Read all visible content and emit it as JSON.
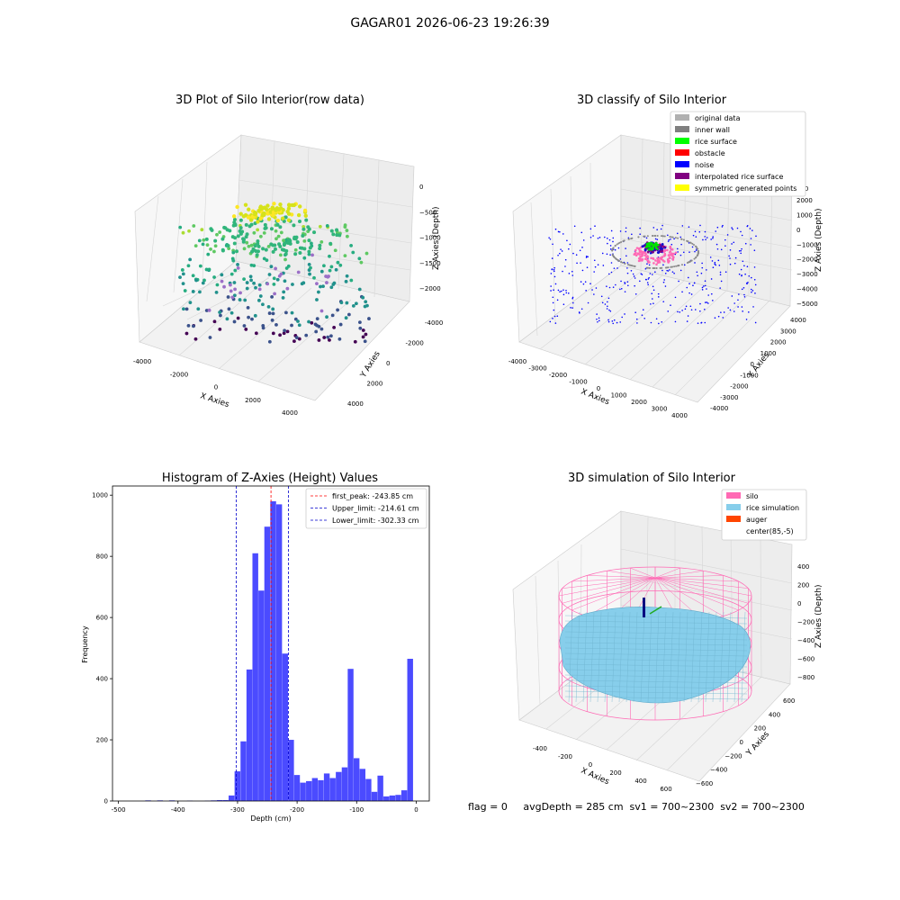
{
  "figure": {
    "title": "GAGAR01 2026-06-23 19:26:39"
  },
  "footer": {
    "text": "flag = 0     avgDepth = 285 cm  sv1 = 700~2300  sv2 = 700~2300"
  },
  "colors": {
    "pane": "#f2f2f2",
    "grid": "#d6d6d6",
    "hist": "#4b4bff",
    "first_peak": "#ff0000",
    "limit": "#0000cc",
    "silo": "#ff69b4",
    "rice": "#87ceeb",
    "auger": "#ff4500"
  },
  "chart_data": [
    {
      "type": "scatter",
      "title": "3D Plot of Silo Interior(row data)",
      "xlabel": "X Axies",
      "ylabel": "Y Axies",
      "zlabel": "Z Axies (Depth)",
      "x_ticks": [
        "-4000",
        "-2000",
        "0",
        "2000",
        "4000"
      ],
      "y_ticks": [
        "-4000",
        "-2000",
        "0",
        "2000",
        "4000"
      ],
      "z_ticks": [
        "0",
        "−500",
        "−1000",
        "−1500",
        "−2000"
      ],
      "colormap": "viridis"
    },
    {
      "type": "scatter",
      "title": "3D classify of Silo Interior",
      "xlabel": "X Axies",
      "ylabel": "Y Axies",
      "zlabel": "Z Axies (Depth)",
      "x_ticks": [
        "-4000",
        "-3000",
        "-2000",
        "-1000",
        "0",
        "1000",
        "2000",
        "3000",
        "4000"
      ],
      "y_ticks": [
        "-4000",
        "-3000",
        "-2000",
        "-1000",
        "0",
        "1000",
        "2000",
        "3000",
        "4000"
      ],
      "z_ticks": [
        "2000",
        "1000",
        "0",
        "−1000",
        "−2000",
        "−3000",
        "−4000",
        "−5000"
      ],
      "z_ticks_partial": [
        "000"
      ],
      "legend": [
        {
          "label": "original data",
          "color": "#b0b0b0"
        },
        {
          "label": "inner wall",
          "color": "#808080"
        },
        {
          "label": "rice surface",
          "color": "#00ff00"
        },
        {
          "label": "obstacle",
          "color": "#ff0000"
        },
        {
          "label": "noise",
          "color": "#0000ff"
        },
        {
          "label": "interpolated rice surface",
          "color": "#800080"
        },
        {
          "label": "symmetric generated points",
          "color": "#ffff00"
        }
      ]
    },
    {
      "type": "bar",
      "title": "Histogram of Z-Axies (Height) Values",
      "xlabel": "Depth (cm)",
      "ylabel": "Frequency",
      "xlim": [
        -510,
        22
      ],
      "ylim": [
        0,
        1030
      ],
      "x_ticks": [
        -500,
        -400,
        -300,
        -200,
        -100,
        0
      ],
      "y_ticks": [
        0,
        200,
        400,
        600,
        800,
        1000
      ],
      "bin_width": 10,
      "bins": [
        {
          "x": -450,
          "y": 2
        },
        {
          "x": -430,
          "y": 2
        },
        {
          "x": -410,
          "y": 2
        },
        {
          "x": -380,
          "y": 1
        },
        {
          "x": -350,
          "y": 1
        },
        {
          "x": -340,
          "y": 2
        },
        {
          "x": -330,
          "y": 3
        },
        {
          "x": -320,
          "y": 3
        },
        {
          "x": -310,
          "y": 18
        },
        {
          "x": -300,
          "y": 97
        },
        {
          "x": -290,
          "y": 195
        },
        {
          "x": -280,
          "y": 430
        },
        {
          "x": -270,
          "y": 810
        },
        {
          "x": -260,
          "y": 688
        },
        {
          "x": -250,
          "y": 897
        },
        {
          "x": -240,
          "y": 980
        },
        {
          "x": -230,
          "y": 970
        },
        {
          "x": -220,
          "y": 482
        },
        {
          "x": -210,
          "y": 200
        },
        {
          "x": -200,
          "y": 85
        },
        {
          "x": -190,
          "y": 60
        },
        {
          "x": -180,
          "y": 65
        },
        {
          "x": -170,
          "y": 75
        },
        {
          "x": -160,
          "y": 68
        },
        {
          "x": -150,
          "y": 90
        },
        {
          "x": -140,
          "y": 75
        },
        {
          "x": -130,
          "y": 95
        },
        {
          "x": -120,
          "y": 110
        },
        {
          "x": -110,
          "y": 432
        },
        {
          "x": -100,
          "y": 140
        },
        {
          "x": -90,
          "y": 105
        },
        {
          "x": -80,
          "y": 72
        },
        {
          "x": -70,
          "y": 30
        },
        {
          "x": -60,
          "y": 83
        },
        {
          "x": -50,
          "y": 15
        },
        {
          "x": -40,
          "y": 18
        },
        {
          "x": -30,
          "y": 20
        },
        {
          "x": -20,
          "y": 35
        },
        {
          "x": -10,
          "y": 465
        }
      ],
      "vlines": [
        {
          "label": "first_peak: -243.85 cm",
          "x": -243.85,
          "color": "#ff0000"
        },
        {
          "label": "Upper_limit: -214.61 cm",
          "x": -214.61,
          "color": "#0000cc"
        },
        {
          "label": "Lower_limit: -302.33 cm",
          "x": -302.33,
          "color": "#0000cc"
        }
      ],
      "legend_position": "top-right"
    },
    {
      "type": "scatter",
      "title": "3D simulation of Silo Interior",
      "xlabel": "X Axies",
      "ylabel": "Y Axies",
      "zlabel": "Z Axies (Depth)",
      "x_ticks": [
        "-400",
        "-200",
        "0",
        "200",
        "400",
        "600"
      ],
      "y_ticks": [
        "600",
        "400",
        "200",
        "0",
        "−200",
        "−400",
        "−600"
      ],
      "z_ticks": [
        "400",
        "200",
        "0",
        "−200",
        "−400",
        "−600",
        "−800"
      ],
      "legend": [
        {
          "label": "silo",
          "color": "#ff69b4"
        },
        {
          "label": "rice simulation",
          "color": "#87ceeb"
        },
        {
          "label": "auger",
          "color": "#ff4500"
        },
        {
          "label": "center(85,-5)",
          "color": ""
        }
      ]
    }
  ]
}
